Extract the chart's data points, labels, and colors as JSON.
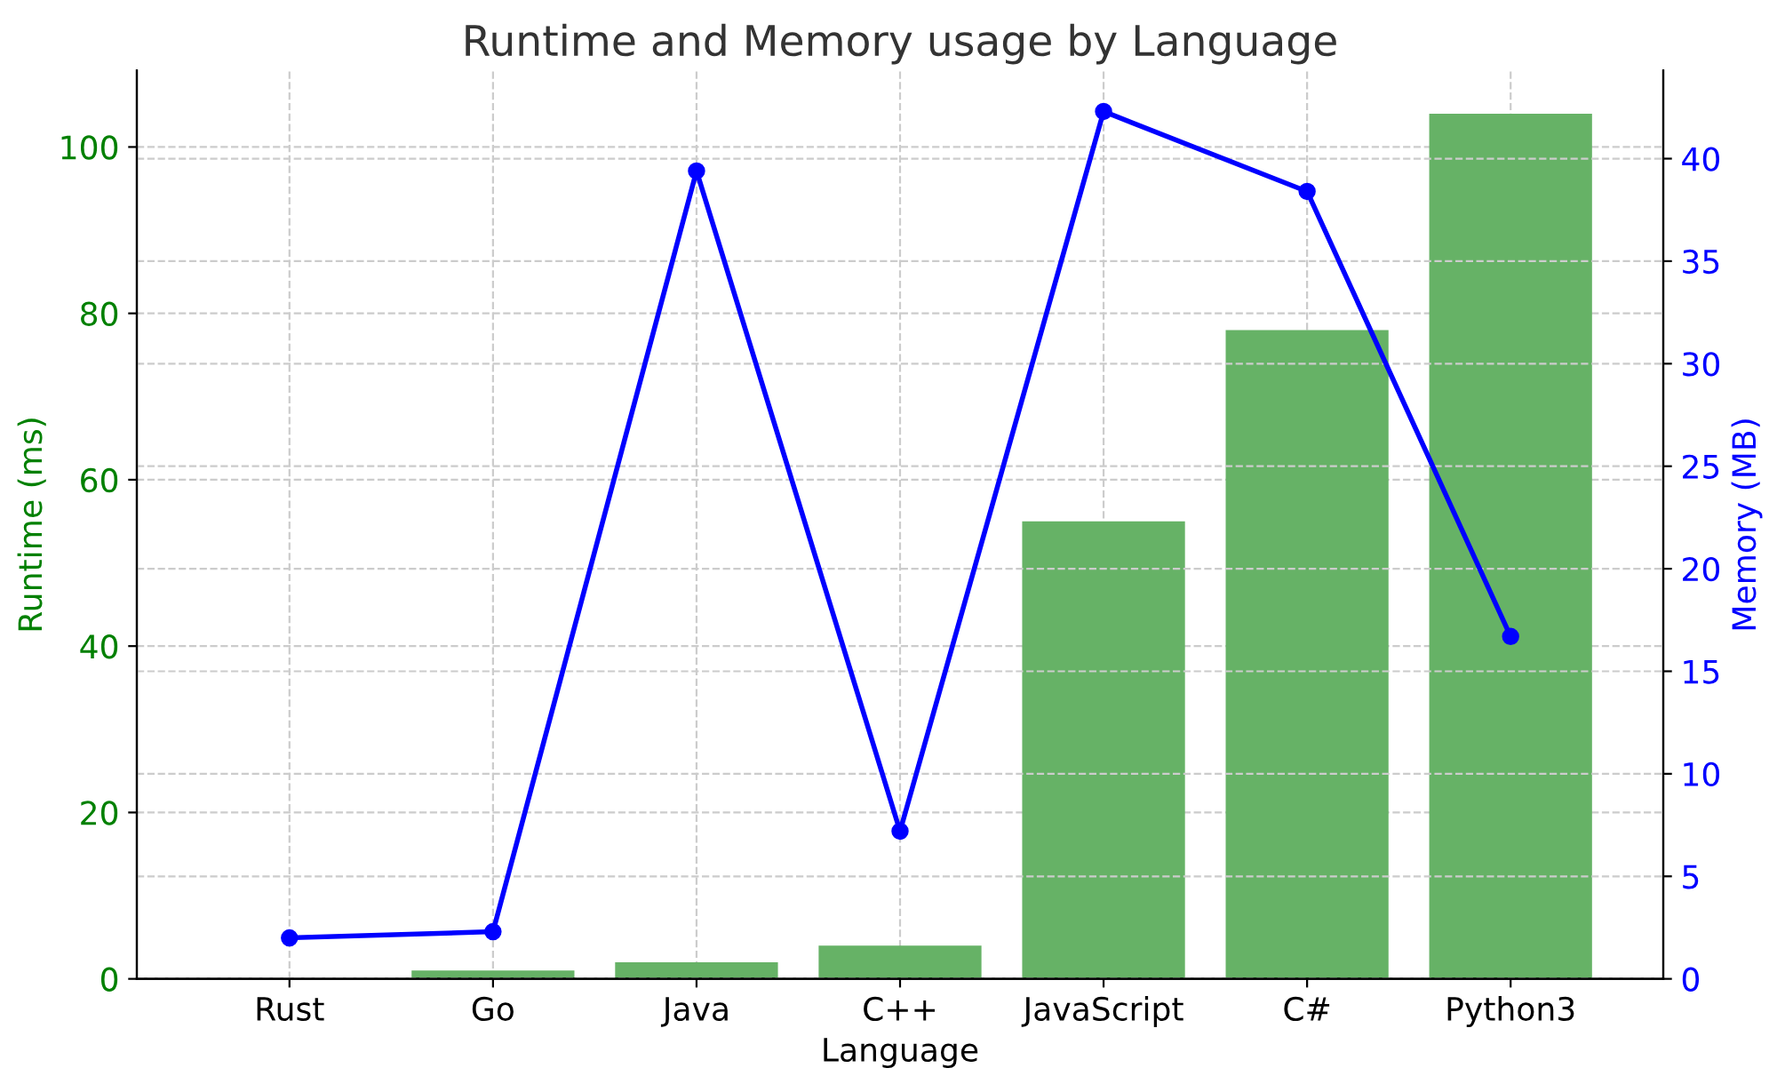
{
  "chart_data": {
    "type": "bar",
    "title": "Runtime and Memory usage by Language",
    "xlabel": "Language",
    "ylabel": "Runtime (ms)",
    "y2label": "Memory (MB)",
    "categories": [
      "Rust",
      "Go",
      "Java",
      "C++",
      "JavaScript",
      "C#",
      "Python3"
    ],
    "series": [
      {
        "name": null,
        "color": "#66b266",
        "values": [
          0,
          1,
          2,
          4,
          55,
          78,
          104
        ]
      },
      {
        "name": null,
        "type": "line",
        "axis": "y2",
        "color": "#0000ff",
        "marker": "circle",
        "line_style": "solid",
        "values": [
          2.0,
          2.3,
          39.4,
          7.2,
          42.3,
          38.4,
          16.7
        ]
      }
    ],
    "ylim": [
      0,
      109.2
    ],
    "yticks": [
      0,
      20,
      40,
      60,
      80,
      100
    ],
    "y2lim": [
      0,
      44.3
    ],
    "y2ticks": [
      0,
      5,
      10,
      15,
      20,
      25,
      30,
      35,
      40
    ],
    "grid": true,
    "legend": false
  }
}
